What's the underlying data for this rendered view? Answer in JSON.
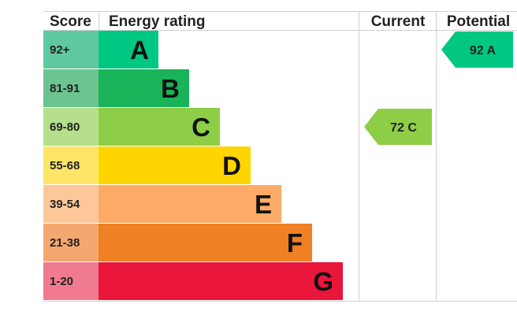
{
  "chart_data": {
    "type": "table",
    "headers": {
      "score": "Score",
      "rating": "Energy rating",
      "current": "Current",
      "potential": "Potential"
    },
    "bands": [
      {
        "score": "92+",
        "letter": "A",
        "color": "#00c781",
        "score_bg": "#5fc9a0"
      },
      {
        "score": "81-91",
        "letter": "B",
        "color": "#19b459",
        "score_bg": "#6cc48e"
      },
      {
        "score": "69-80",
        "letter": "C",
        "color": "#8dce46",
        "score_bg": "#b5df8c"
      },
      {
        "score": "55-68",
        "letter": "D",
        "color": "#ffd500",
        "score_bg": "#ffe566"
      },
      {
        "score": "39-54",
        "letter": "E",
        "color": "#fcaa65",
        "score_bg": "#fdc79a"
      },
      {
        "score": "21-38",
        "letter": "F",
        "color": "#ef8023",
        "score_bg": "#f4a870"
      },
      {
        "score": "1-20",
        "letter": "G",
        "color": "#e9153b",
        "score_bg": "#f07a90"
      }
    ],
    "current": {
      "value": 72,
      "letter": "C",
      "label": "72 C",
      "color": "#8dce46"
    },
    "potential": {
      "value": 92,
      "letter": "A",
      "label": "92 A",
      "color": "#00c781"
    }
  }
}
